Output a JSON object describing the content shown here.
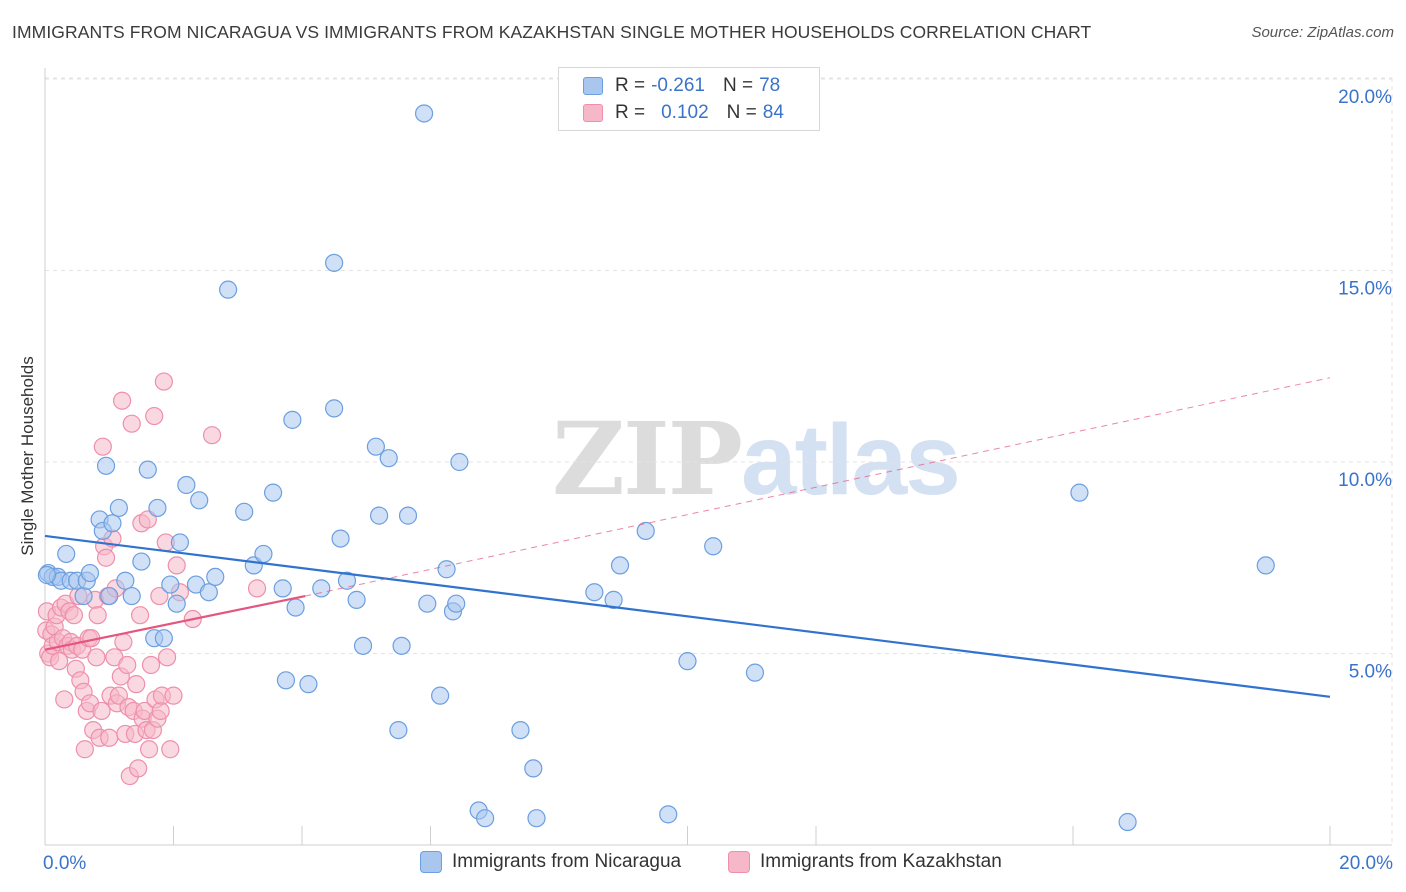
{
  "title": "IMMIGRANTS FROM NICARAGUA VS IMMIGRANTS FROM KAZAKHSTAN SINGLE MOTHER HOUSEHOLDS CORRELATION CHART",
  "source": "Source: ZipAtlas.com",
  "watermark": {
    "zip": "ZIP",
    "atlas": "atlas"
  },
  "legend": {
    "r_label": "R =",
    "n_label": "N =",
    "nicaragua": {
      "r": "-0.261",
      "n": "78"
    },
    "kazakhstan": {
      "r": "0.102",
      "n": "84"
    }
  },
  "colors": {
    "nicaragua_fill": "#a9c7ee",
    "nicaragua_stroke": "#6b9fe0",
    "nicaragua_line": "#2f73cf",
    "kazakhstan_fill": "#f6b8c9",
    "kazakhstan_stroke": "#ee8fab",
    "kazakhstan_line": "#e4557f",
    "tick_label": "#3a73c9",
    "grid": "#e3e3e3"
  },
  "chart_data": {
    "type": "scatter",
    "title": "IMMIGRANTS FROM NICARAGUA VS IMMIGRANTS FROM KAZAKHSTAN SINGLE MOTHER HOUSEHOLDS CORRELATION CHART",
    "xlabel": "",
    "ylabel": "Single Mother Households",
    "xlim": [
      0,
      20
    ],
    "ylim": [
      0,
      20.5
    ],
    "x_tick_labels": [
      "0.0%",
      "20.0%"
    ],
    "y_ticks": [
      5,
      10,
      15,
      20
    ],
    "y_tick_labels": [
      "5.0%",
      "10.0%",
      "15.0%",
      "20.0%"
    ],
    "grid": true,
    "legend_position": "top-center",
    "series": [
      {
        "name": "Immigrants from Nicaragua",
        "r": -0.261,
        "n": 78,
        "trend": {
          "x": [
            0,
            20
          ],
          "y": [
            8.07,
            3.87
          ],
          "style": "solid"
        },
        "points": [
          [
            0.05,
            7.1
          ],
          [
            0.12,
            7.0
          ],
          [
            0.2,
            7.0
          ],
          [
            0.25,
            6.9
          ],
          [
            0.33,
            7.6
          ],
          [
            0.4,
            6.9
          ],
          [
            0.5,
            6.9
          ],
          [
            0.6,
            6.5
          ],
          [
            0.65,
            6.9
          ],
          [
            0.7,
            7.1
          ],
          [
            0.85,
            8.5
          ],
          [
            0.9,
            8.2
          ],
          [
            0.95,
            9.9
          ],
          [
            1.05,
            8.4
          ],
          [
            1.0,
            6.5
          ],
          [
            1.15,
            8.8
          ],
          [
            1.25,
            6.9
          ],
          [
            1.35,
            6.5
          ],
          [
            1.5,
            7.4
          ],
          [
            1.6,
            9.8
          ],
          [
            1.7,
            5.4
          ],
          [
            1.75,
            8.8
          ],
          [
            1.85,
            5.4
          ],
          [
            1.95,
            6.8
          ],
          [
            2.05,
            6.3
          ],
          [
            2.1,
            7.9
          ],
          [
            2.2,
            9.4
          ],
          [
            2.35,
            6.8
          ],
          [
            2.4,
            9.0
          ],
          [
            2.55,
            6.6
          ],
          [
            2.65,
            7.0
          ],
          [
            2.85,
            14.5
          ],
          [
            3.1,
            8.7
          ],
          [
            3.25,
            7.3
          ],
          [
            3.4,
            7.6
          ],
          [
            3.55,
            9.2
          ],
          [
            3.7,
            6.7
          ],
          [
            3.75,
            4.3
          ],
          [
            3.85,
            11.1
          ],
          [
            3.9,
            6.2
          ],
          [
            4.1,
            4.2
          ],
          [
            4.3,
            6.7
          ],
          [
            4.5,
            11.4
          ],
          [
            4.5,
            15.2
          ],
          [
            4.6,
            8.0
          ],
          [
            4.7,
            6.9
          ],
          [
            4.85,
            6.4
          ],
          [
            4.95,
            5.2
          ],
          [
            5.15,
            10.4
          ],
          [
            5.2,
            8.6
          ],
          [
            5.35,
            10.1
          ],
          [
            5.5,
            3.0
          ],
          [
            5.55,
            5.2
          ],
          [
            5.65,
            8.6
          ],
          [
            5.9,
            19.1
          ],
          [
            5.95,
            6.3
          ],
          [
            6.15,
            3.9
          ],
          [
            6.25,
            7.2
          ],
          [
            6.35,
            6.1
          ],
          [
            6.4,
            6.3
          ],
          [
            6.45,
            10.0
          ],
          [
            6.75,
            0.9
          ],
          [
            6.85,
            0.7
          ],
          [
            7.4,
            3.0
          ],
          [
            7.6,
            2.0
          ],
          [
            7.65,
            0.7
          ],
          [
            8.55,
            6.6
          ],
          [
            8.85,
            6.4
          ],
          [
            8.95,
            7.3
          ],
          [
            9.35,
            8.2
          ],
          [
            9.7,
            0.8
          ],
          [
            10.0,
            4.8
          ],
          [
            10.4,
            7.8
          ],
          [
            11.05,
            4.5
          ],
          [
            16.1,
            9.2
          ],
          [
            16.85,
            0.6
          ],
          [
            19.0,
            7.3
          ],
          [
            0.03,
            7.05
          ]
        ]
      },
      {
        "name": "Immigrants from Kazakhstan",
        "r": 0.102,
        "n": 84,
        "trend": {
          "x": [
            0,
            4.05
          ],
          "y": [
            5.1,
            6.5
          ],
          "style": "solid",
          "extension": {
            "x": [
              4.05,
              20
            ],
            "y": [
              6.5,
              12.2
            ],
            "style": "dashed"
          }
        },
        "points": [
          [
            0.02,
            5.6
          ],
          [
            0.03,
            6.1
          ],
          [
            0.05,
            5.0
          ],
          [
            0.08,
            4.9
          ],
          [
            0.1,
            5.5
          ],
          [
            0.12,
            5.2
          ],
          [
            0.15,
            5.7
          ],
          [
            0.18,
            6.0
          ],
          [
            0.2,
            5.3
          ],
          [
            0.22,
            4.8
          ],
          [
            0.25,
            6.2
          ],
          [
            0.28,
            5.4
          ],
          [
            0.3,
            3.8
          ],
          [
            0.32,
            6.3
          ],
          [
            0.35,
            5.2
          ],
          [
            0.38,
            6.1
          ],
          [
            0.4,
            5.3
          ],
          [
            0.42,
            5.1
          ],
          [
            0.45,
            6.0
          ],
          [
            0.48,
            4.6
          ],
          [
            0.5,
            5.2
          ],
          [
            0.52,
            6.5
          ],
          [
            0.55,
            4.3
          ],
          [
            0.58,
            5.1
          ],
          [
            0.6,
            4.0
          ],
          [
            0.62,
            2.5
          ],
          [
            0.65,
            3.5
          ],
          [
            0.68,
            5.4
          ],
          [
            0.7,
            3.7
          ],
          [
            0.72,
            5.4
          ],
          [
            0.75,
            3.0
          ],
          [
            0.78,
            6.4
          ],
          [
            0.8,
            4.9
          ],
          [
            0.82,
            6.0
          ],
          [
            0.85,
            2.8
          ],
          [
            0.88,
            3.5
          ],
          [
            0.9,
            10.4
          ],
          [
            0.92,
            7.8
          ],
          [
            0.95,
            7.5
          ],
          [
            0.98,
            6.5
          ],
          [
            1.0,
            2.8
          ],
          [
            1.02,
            3.9
          ],
          [
            1.05,
            8.0
          ],
          [
            1.08,
            4.9
          ],
          [
            1.1,
            6.7
          ],
          [
            1.12,
            3.7
          ],
          [
            1.15,
            3.9
          ],
          [
            1.18,
            4.4
          ],
          [
            1.2,
            11.6
          ],
          [
            1.22,
            5.3
          ],
          [
            1.25,
            2.9
          ],
          [
            1.28,
            4.7
          ],
          [
            1.3,
            3.6
          ],
          [
            1.32,
            1.8
          ],
          [
            1.35,
            11.0
          ],
          [
            1.38,
            3.5
          ],
          [
            1.4,
            2.9
          ],
          [
            1.42,
            4.2
          ],
          [
            1.45,
            2.0
          ],
          [
            1.48,
            6.0
          ],
          [
            1.5,
            8.4
          ],
          [
            1.52,
            3.3
          ],
          [
            1.55,
            3.5
          ],
          [
            1.58,
            3.0
          ],
          [
            1.6,
            8.5
          ],
          [
            1.62,
            2.5
          ],
          [
            1.65,
            4.7
          ],
          [
            1.68,
            3.0
          ],
          [
            1.7,
            11.2
          ],
          [
            1.72,
            3.8
          ],
          [
            1.75,
            3.3
          ],
          [
            1.78,
            6.5
          ],
          [
            1.8,
            3.5
          ],
          [
            1.82,
            3.9
          ],
          [
            1.85,
            12.1
          ],
          [
            1.88,
            7.9
          ],
          [
            1.9,
            4.9
          ],
          [
            1.95,
            2.5
          ],
          [
            2.0,
            3.9
          ],
          [
            2.05,
            7.3
          ],
          [
            2.1,
            6.6
          ],
          [
            2.3,
            5.9
          ],
          [
            2.6,
            10.7
          ],
          [
            3.3,
            6.7
          ]
        ]
      }
    ]
  },
  "bottom_legend": [
    "Immigrants from Nicaragua",
    "Immigrants from Kazakhstan"
  ]
}
